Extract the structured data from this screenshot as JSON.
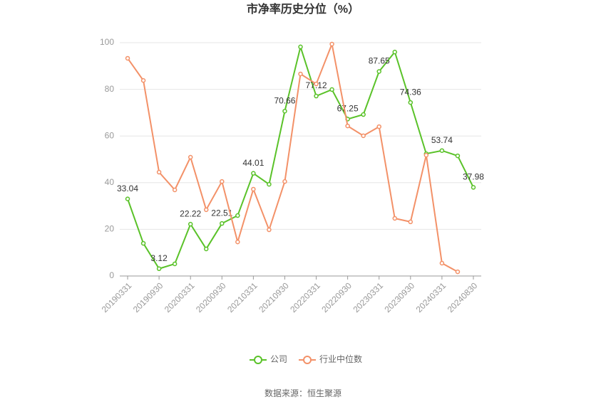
{
  "chart_data": {
    "type": "line",
    "title": "市净率历史分位（%）",
    "source": "数据来源：恒生聚源",
    "categories": [
      "20190331",
      null,
      "20190930",
      null,
      "20200331",
      null,
      "20200930",
      null,
      "20210331",
      null,
      "20210930",
      null,
      "20220331",
      null,
      "20220930",
      null,
      "20230331",
      null,
      "20230930",
      null,
      "20240331",
      null,
      "20240830"
    ],
    "series": [
      {
        "name": "公司",
        "color": "#5ac229",
        "values": [
          33.04,
          14.0,
          3.12,
          5.2,
          22.22,
          11.6,
          22.51,
          25.9,
          44.01,
          39.3,
          70.66,
          98.2,
          77.12,
          79.9,
          67.25,
          69.2,
          87.65,
          96.0,
          74.36,
          52.4,
          53.74,
          51.5,
          37.98
        ]
      },
      {
        "name": "行业中位数",
        "color": "#f39168",
        "values": [
          93.3,
          83.8,
          44.5,
          36.9,
          50.9,
          28.4,
          40.5,
          14.6,
          37.2,
          19.8,
          40.5,
          86.6,
          82.3,
          99.4,
          64.3,
          60.1,
          64.0,
          24.7,
          23.2,
          51.8,
          5.5,
          1.8,
          null
        ]
      }
    ],
    "ylim": [
      0,
      100
    ],
    "yticks": [
      0,
      20,
      40,
      60,
      80,
      100
    ],
    "grid": true
  }
}
